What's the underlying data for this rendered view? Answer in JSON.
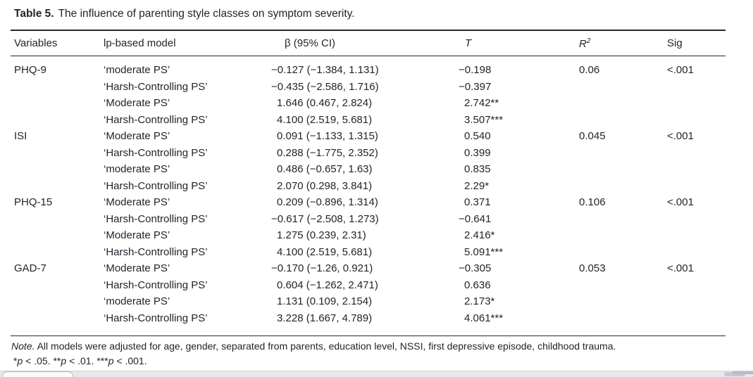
{
  "title": {
    "label": "Table 5.",
    "text": "The influence of parenting style classes on symptom severity."
  },
  "header": {
    "variables": "Variables",
    "model": "lp-based model",
    "beta": "β (95% CI)",
    "t": "T",
    "r2_base": "R",
    "r2_sup": "2",
    "sig": "Sig"
  },
  "rows": [
    {
      "variable": "PHQ-9",
      "model": "‘moderate PS’",
      "beta": "−0.127 (−1.384, 1.131)",
      "t": "−0.198",
      "r2": "0.06",
      "sig": "<.001"
    },
    {
      "variable": "",
      "model": "‘Harsh-Controlling PS’",
      "beta": "−0.435 (−2.586, 1.716)",
      "t": "−0.397",
      "r2": "",
      "sig": ""
    },
    {
      "variable": "",
      "model": "‘Moderate PS’",
      "beta": "1.646 (0.467, 2.824)",
      "t": "2.742**",
      "r2": "",
      "sig": ""
    },
    {
      "variable": "",
      "model": "‘Harsh-Controlling PS’",
      "beta": "4.100 (2.519, 5.681)",
      "t": "3.507***",
      "r2": "",
      "sig": ""
    },
    {
      "variable": "ISI",
      "model": "‘Moderate PS’",
      "beta": "0.091 (−1.133, 1.315)",
      "t": "0.540",
      "r2": "0.045",
      "sig": "<.001"
    },
    {
      "variable": "",
      "model": "‘Harsh-Controlling PS’",
      "beta": "0.288 (−1.775, 2.352)",
      "t": "0.399",
      "r2": "",
      "sig": ""
    },
    {
      "variable": "",
      "model": "‘moderate PS’",
      "beta": "0.486 (−0.657, 1.63)",
      "t": "0.835",
      "r2": "",
      "sig": ""
    },
    {
      "variable": "",
      "model": "‘Harsh-Controlling PS’",
      "beta": "2.070 (0.298, 3.841)",
      "t": "2.29*",
      "r2": "",
      "sig": ""
    },
    {
      "variable": "PHQ-15",
      "model": "‘Moderate PS’",
      "beta": "0.209 (−0.896, 1.314)",
      "t": "0.371",
      "r2": "0.106",
      "sig": "<.001"
    },
    {
      "variable": "",
      "model": "‘Harsh-Controlling PS’",
      "beta": "−0.617 (−2.508, 1.273)",
      "t": "−0.641",
      "r2": "",
      "sig": ""
    },
    {
      "variable": "",
      "model": "‘Moderate PS’",
      "beta": "1.275 (0.239, 2.31)",
      "t": "2.416*",
      "r2": "",
      "sig": ""
    },
    {
      "variable": "",
      "model": "‘Harsh-Controlling PS’",
      "beta": "4.100 (2.519, 5.681)",
      "t": "5.091***",
      "r2": "",
      "sig": ""
    },
    {
      "variable": "GAD-7",
      "model": "‘Moderate PS’",
      "beta": "−0.170 (−1.26, 0.921)",
      "t": "−0.305",
      "r2": "0.053",
      "sig": "<.001"
    },
    {
      "variable": "",
      "model": "‘Harsh-Controlling PS’",
      "beta": "0.604 (−1.262, 2.471)",
      "t": "0.636",
      "r2": "",
      "sig": ""
    },
    {
      "variable": "",
      "model": "‘moderate PS’",
      "beta": "1.131 (0.109, 2.154)",
      "t": "2.173*",
      "r2": "",
      "sig": ""
    },
    {
      "variable": "",
      "model": "‘Harsh-Controlling PS’",
      "beta": "3.228 (1.667, 4.789)",
      "t": "4.061***",
      "r2": "",
      "sig": ""
    }
  ],
  "note": {
    "prefix": "Note.",
    "text": " All models were adjusted for age, gender, separated from parents, education level, NSSI, first depressive episode, childhood trauma."
  },
  "significance": [
    {
      "stars": "*",
      "p": "p",
      "rest": " < .05. "
    },
    {
      "stars": "**",
      "p": "p",
      "rest": " < .01. "
    },
    {
      "stars": "***",
      "p": "p",
      "rest": " < .001."
    }
  ],
  "colors": {
    "text": "#22242c",
    "rule": "#26282f",
    "strip_bg": "#e9e9ed",
    "scroll_thumb": "#c7c7cd"
  }
}
